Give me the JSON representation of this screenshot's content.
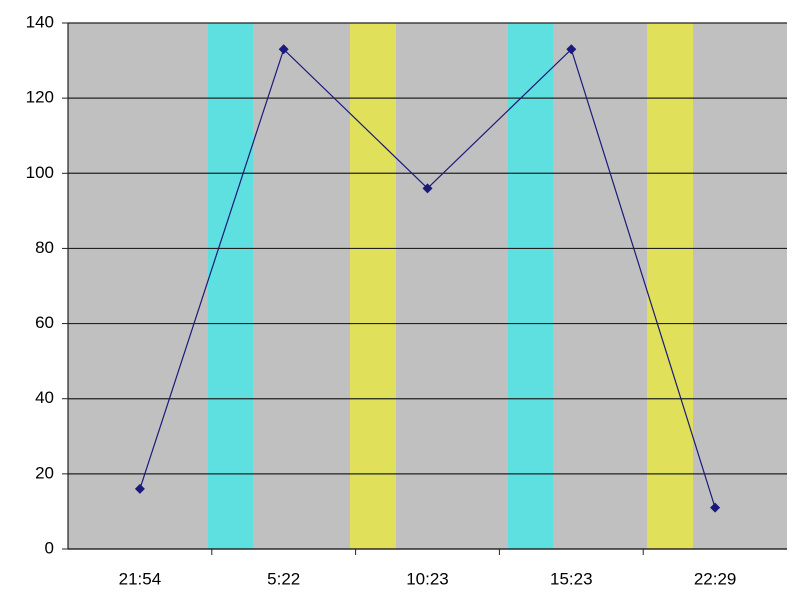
{
  "chart_data": {
    "type": "line",
    "categories": [
      "21:54",
      "5:22",
      "10:23",
      "15:23",
      "22:29"
    ],
    "series": [
      {
        "color": "#1a1a7a",
        "values": [
          16,
          133,
          96,
          133,
          11
        ]
      }
    ],
    "ylim": [
      0,
      140
    ],
    "yticks": [
      0,
      20,
      40,
      60,
      80,
      100,
      120,
      140
    ],
    "grid": true
  }
}
